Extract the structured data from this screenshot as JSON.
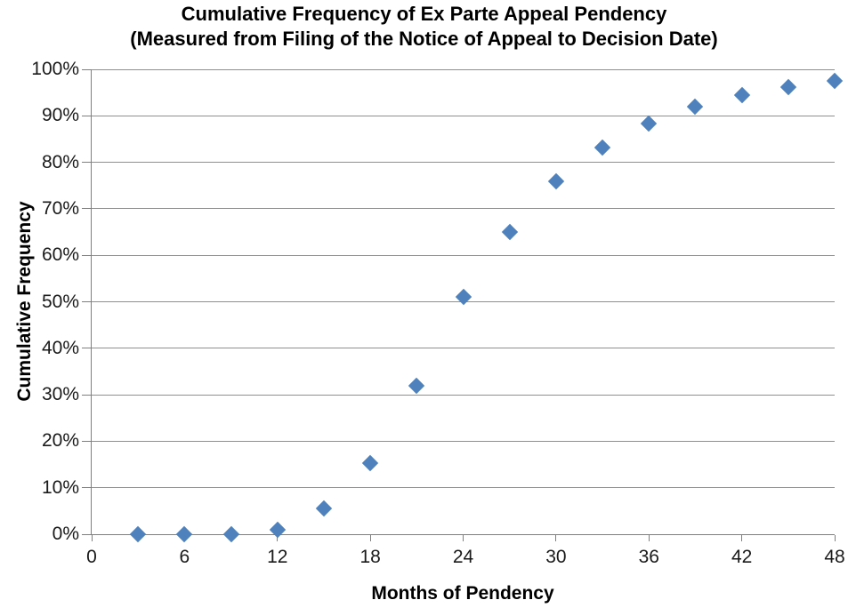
{
  "title": {
    "line1": "Cumulative Frequency of Ex Parte Appeal Pendency",
    "line2": "(Measured from Filing of the Notice of Appeal to Decision Date)"
  },
  "chart_data": {
    "type": "scatter",
    "title": "Cumulative Frequency of Ex Parte Appeal Pendency (Measured from Filing of the Notice of Appeal to Decision Date)",
    "xlabel": "Months of Pendency",
    "ylabel": "Cumulative Frequency",
    "x": [
      3,
      6,
      9,
      12,
      15,
      18,
      21,
      24,
      27,
      30,
      33,
      36,
      39,
      42,
      45,
      48
    ],
    "y": [
      0,
      0,
      0,
      1,
      5.5,
      15.3,
      32,
      51,
      65,
      76,
      83.2,
      88.4,
      92,
      94.5,
      96.2,
      97.5
    ],
    "xlim": [
      0,
      48
    ],
    "ylim": [
      0,
      100
    ],
    "x_ticks": [
      0,
      6,
      12,
      18,
      24,
      30,
      36,
      42,
      48
    ],
    "y_ticks": [
      0,
      10,
      20,
      30,
      40,
      50,
      60,
      70,
      80,
      90,
      100
    ],
    "y_tick_suffix": "%",
    "grid": "horizontal",
    "legend": "none",
    "marker": {
      "shape": "diamond",
      "color": "#4F81BD"
    },
    "colors": {
      "gridline": "#8F8F8F",
      "axis": "#7F7F7F",
      "tick_text": "#1A1A1A",
      "title_text": "#000000",
      "background": "#FFFFFF"
    }
  }
}
